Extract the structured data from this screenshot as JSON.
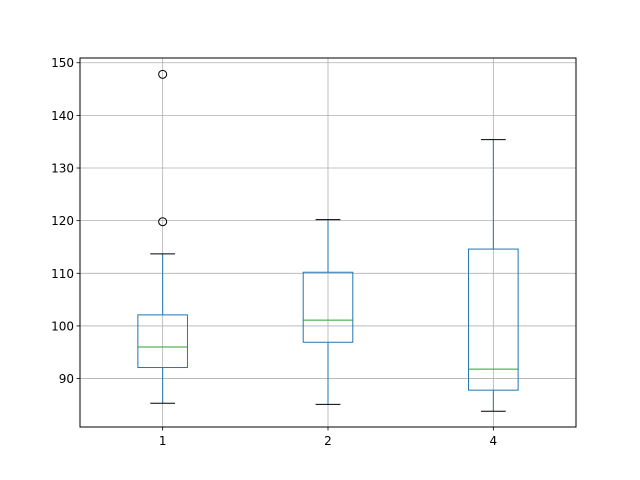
{
  "chart_data": {
    "type": "box",
    "title": "",
    "xlabel": "",
    "ylabel": "",
    "grid": true,
    "ylim": [
      80.8,
      150.9
    ],
    "yticks": [
      90,
      100,
      110,
      120,
      130,
      140,
      150
    ],
    "categories": [
      "1",
      "2",
      "4"
    ],
    "boxes": [
      {
        "category": "1",
        "whisker_low": 85.3,
        "q1": 92.1,
        "median": 96.0,
        "q3": 102.1,
        "whisker_high": 113.7,
        "outliers": [
          119.8,
          147.8
        ]
      },
      {
        "category": "2",
        "whisker_low": 85.1,
        "q1": 96.9,
        "median": 101.1,
        "q3": 110.2,
        "whisker_high": 120.2,
        "outliers": []
      },
      {
        "category": "4",
        "whisker_low": 83.8,
        "q1": 87.8,
        "median": 91.8,
        "q3": 114.6,
        "whisker_high": 135.4,
        "outliers": []
      }
    ],
    "colors": {
      "box": "#1f77b4",
      "median": "#2ca02c",
      "cap": "#000000",
      "flier_edge": "#000000",
      "grid": "#b0b0b0"
    }
  }
}
